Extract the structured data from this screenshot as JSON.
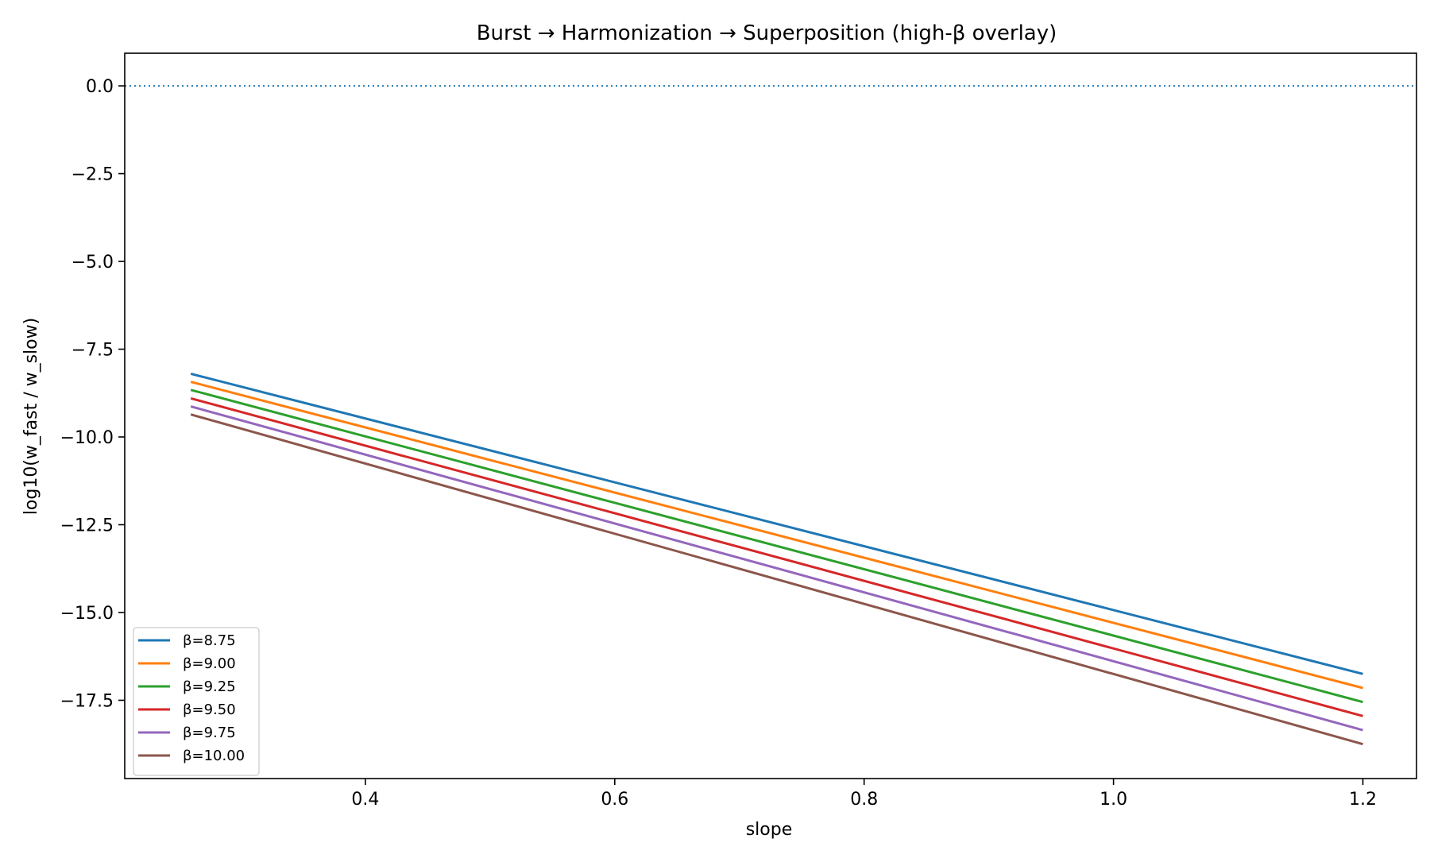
{
  "chart_data": {
    "type": "line",
    "title": "Burst → Harmonization → Superposition (high-β overlay)",
    "xlabel": "slope",
    "ylabel": "log10(w_fast / w_slow)",
    "xlim": [
      0.207,
      1.243
    ],
    "ylim": [
      -19.73,
      0.93
    ],
    "xticks": [
      0.4,
      0.6,
      0.8,
      1.0,
      1.2
    ],
    "xtick_labels": [
      "0.4",
      "0.6",
      "0.8",
      "1.0",
      "1.2"
    ],
    "yticks": [
      0.0,
      -2.5,
      -5.0,
      -7.5,
      -10.0,
      -12.5,
      -15.0,
      -17.5
    ],
    "ytick_labels": [
      "0.0",
      "−2.5",
      "−5.0",
      "−7.5",
      "−10.0",
      "−12.5",
      "−15.0",
      "−17.5"
    ],
    "grid": false,
    "legend": "lower-left",
    "reference_line": {
      "y": 0.0,
      "style": "dotted",
      "color": "#1f77b4"
    },
    "series": [
      {
        "name": "β=8.75",
        "color": "#1f77b4",
        "x": [
          0.26,
          1.2
        ],
        "values": [
          -8.2,
          -16.75
        ]
      },
      {
        "name": "β=9.00",
        "color": "#ff7f0e",
        "x": [
          0.26,
          1.2
        ],
        "values": [
          -8.43,
          -17.15
        ]
      },
      {
        "name": "β=9.25",
        "color": "#2ca02c",
        "x": [
          0.26,
          1.2
        ],
        "values": [
          -8.66,
          -17.55
        ]
      },
      {
        "name": "β=9.50",
        "color": "#d62728",
        "x": [
          0.26,
          1.2
        ],
        "values": [
          -8.9,
          -17.95
        ]
      },
      {
        "name": "β=9.75",
        "color": "#9467bd",
        "x": [
          0.26,
          1.2
        ],
        "values": [
          -9.13,
          -18.35
        ]
      },
      {
        "name": "β=10.00",
        "color": "#8c564b",
        "x": [
          0.26,
          1.2
        ],
        "values": [
          -9.36,
          -18.75
        ]
      }
    ]
  }
}
